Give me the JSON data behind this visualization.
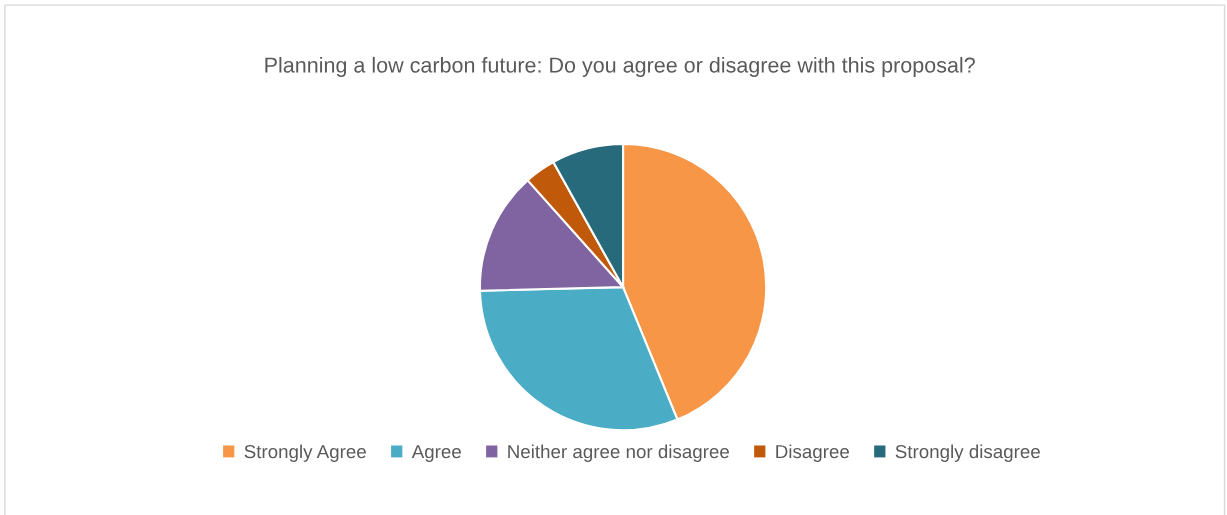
{
  "chart_data": {
    "type": "pie",
    "title": "Planning a low carbon future: Do you agree or disagree with this proposal?",
    "categories": [
      "Strongly Agree",
      "Agree",
      "Neither agree nor disagree",
      "Disagree",
      "Strongly disagree"
    ],
    "values": [
      43.8,
      30.8,
      13.8,
      3.5,
      8.1
    ],
    "colors": [
      "#f79646",
      "#4bacc6",
      "#8064a2",
      "#c0590a",
      "#276a7c"
    ],
    "legend": "bottom"
  }
}
